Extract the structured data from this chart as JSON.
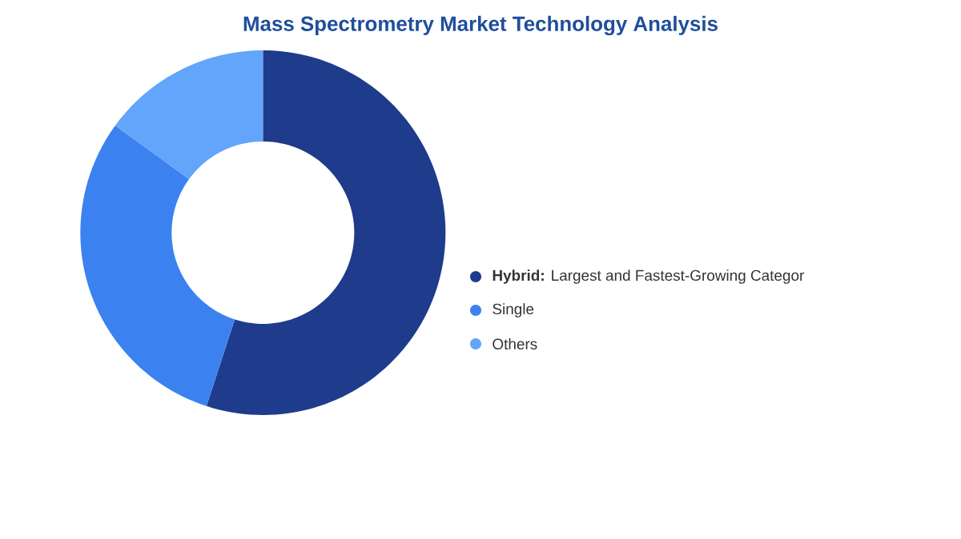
{
  "chart_data": {
    "type": "donut",
    "title": "Mass Spectrometry Market Technology Analysis",
    "categories": [
      "**Hybrid:**  Largest and Fastest-Growing Categor",
      "Single",
      "Others"
    ],
    "values": [
      55,
      30,
      15
    ],
    "colors": [
      "#1f3b8c",
      "#3b82f0",
      "#62a5fa"
    ],
    "legend": "right"
  }
}
